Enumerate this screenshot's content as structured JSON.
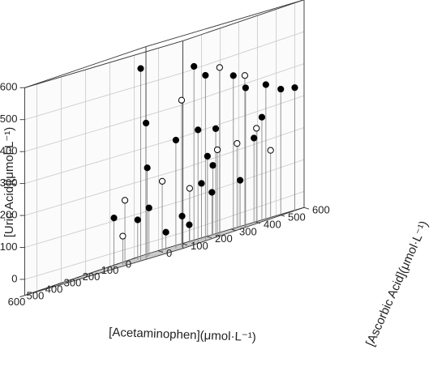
{
  "chart_data": {
    "type": "scatter",
    "subtype": "3d-stem",
    "title": "",
    "axes": {
      "x": {
        "label": "[Acetaminophen](μmol·L⁻¹)",
        "ticks": [
          "0",
          "100",
          "200",
          "300",
          "400",
          "500",
          "600"
        ],
        "range": [
          -50,
          600
        ]
      },
      "y": {
        "label": "[Ascorbic Acid](μmol·L⁻¹)",
        "ticks": [
          "0",
          "100",
          "200",
          "300",
          "400",
          "500",
          "600"
        ],
        "range": [
          -50,
          600
        ]
      },
      "z": {
        "label": "[Uric Acid](μmol·L⁻¹)",
        "ticks": [
          "0",
          "100",
          "200",
          "300",
          "400",
          "500",
          "600"
        ],
        "range": [
          -50,
          600
        ]
      }
    },
    "grid": true,
    "marker_styles": {
      "filled": "#000000",
      "open": "#ffffff"
    },
    "points": [
      {
        "x": 500,
        "y": 350,
        "z": 550,
        "open": false
      },
      {
        "x": 410,
        "y": 500,
        "z": 505,
        "open": false
      },
      {
        "x": 355,
        "y": 505,
        "z": 465,
        "open": false
      },
      {
        "x": 305,
        "y": 525,
        "z": 475,
        "open": true
      },
      {
        "x": 225,
        "y": 520,
        "z": 435,
        "open": false
      },
      {
        "x": 235,
        "y": 575,
        "z": 425,
        "open": true
      },
      {
        "x": 155,
        "y": 600,
        "z": 375,
        "open": false
      },
      {
        "x": 75,
        "y": 600,
        "z": 345,
        "open": false
      },
      {
        "x": 0,
        "y": 600,
        "z": 335,
        "open": false
      },
      {
        "x": 385,
        "y": 430,
        "z": 410,
        "open": true
      },
      {
        "x": 205,
        "y": 555,
        "z": 385,
        "open": false
      },
      {
        "x": 85,
        "y": 530,
        "z": 275,
        "open": false
      },
      {
        "x": 530,
        "y": 395,
        "z": 375,
        "open": false
      },
      {
        "x": 370,
        "y": 395,
        "z": 290,
        "open": false
      },
      {
        "x": 310,
        "y": 440,
        "z": 300,
        "open": false
      },
      {
        "x": 215,
        "y": 440,
        "z": 285,
        "open": false
      },
      {
        "x": 75,
        "y": 500,
        "z": 245,
        "open": true
      },
      {
        "x": 55,
        "y": 405,
        "z": 215,
        "open": true
      },
      {
        "x": 115,
        "y": 370,
        "z": 215,
        "open": true
      },
      {
        "x": 380,
        "y": 285,
        "z": 230,
        "open": false
      },
      {
        "x": 155,
        "y": 360,
        "z": 205,
        "open": false
      },
      {
        "x": 100,
        "y": 340,
        "z": 170,
        "open": false
      },
      {
        "x": 10,
        "y": 440,
        "z": 215,
        "open": false
      },
      {
        "x": 415,
        "y": 220,
        "z": 150,
        "open": true
      },
      {
        "x": 215,
        "y": 220,
        "z": 170,
        "open": true
      },
      {
        "x": 135,
        "y": 320,
        "z": 125,
        "open": false
      },
      {
        "x": 120,
        "y": 260,
        "z": 120,
        "open": true
      },
      {
        "x": 40,
        "y": 290,
        "z": 85,
        "open": false
      },
      {
        "x": -40,
        "y": 470,
        "z": 160,
        "open": true
      },
      {
        "x": -20,
        "y": 360,
        "z": 95,
        "open": false
      },
      {
        "x": 260,
        "y": 200,
        "z": 100,
        "open": false
      },
      {
        "x": 415,
        "y": 175,
        "z": 105,
        "open": false
      },
      {
        "x": 340,
        "y": 215,
        "z": 75,
        "open": false
      },
      {
        "x": 115,
        "y": 225,
        "z": 40,
        "open": false
      },
      {
        "x": 70,
        "y": 220,
        "z": 5,
        "open": false
      },
      {
        "x": 420,
        "y": 215,
        "z": 40,
        "open": true
      },
      {
        "x": 130,
        "y": 170,
        "z": 5,
        "open": false
      }
    ]
  }
}
